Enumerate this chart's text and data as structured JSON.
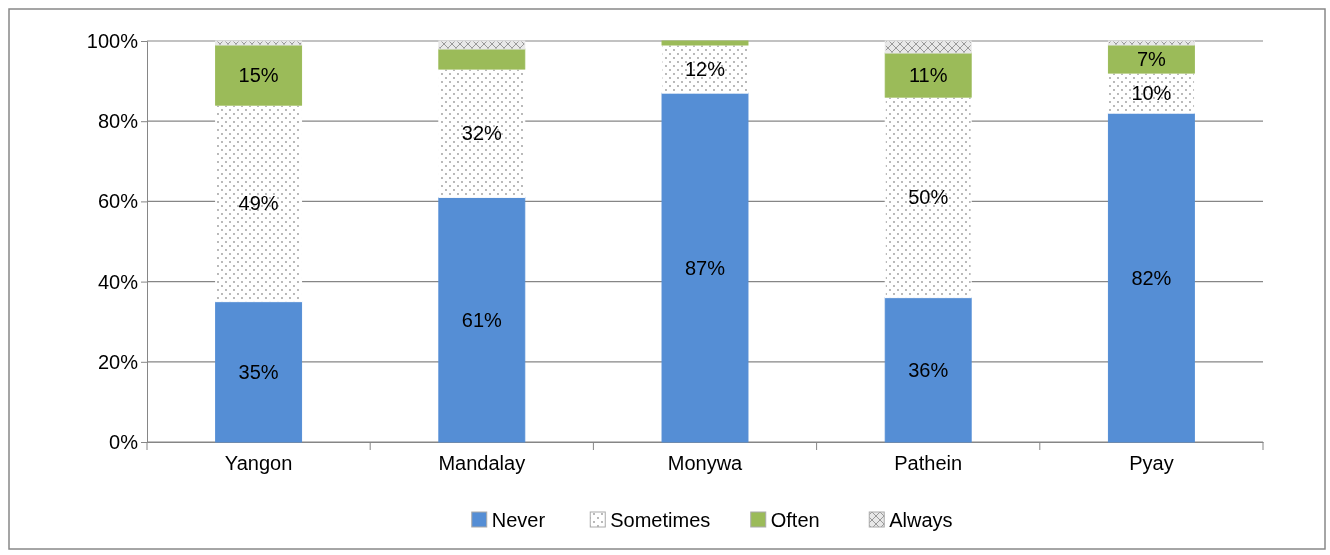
{
  "chart_data": {
    "type": "bar",
    "stacked": true,
    "categories": [
      "Yangon",
      "Mandalay",
      "Monywa",
      "Pathein",
      "Pyay"
    ],
    "series": [
      {
        "name": "Never",
        "color": "#558ed5",
        "values": [
          35,
          61,
          87,
          36,
          82
        ],
        "value_labels": [
          "35%",
          "61%",
          "87%",
          "36%",
          "82%"
        ]
      },
      {
        "name": "Sometimes",
        "color": "#ffffff",
        "values": [
          49,
          32,
          12,
          50,
          10
        ],
        "value_labels": [
          "49%",
          "32%",
          "12%",
          "50%",
          "10%"
        ]
      },
      {
        "name": "Often",
        "color": "#9bbb59",
        "values": [
          15,
          5,
          1,
          11,
          7
        ],
        "value_labels": [
          "15%",
          null,
          null,
          "11%",
          "7%"
        ]
      },
      {
        "name": "Always",
        "color": "#e8e8e8",
        "values": [
          1,
          2,
          0,
          3,
          1
        ],
        "value_labels": [
          null,
          null,
          null,
          null,
          null
        ]
      }
    ],
    "ylim": [
      0,
      100
    ],
    "yticks": [
      {
        "value": 0,
        "label": "0%"
      },
      {
        "value": 20,
        "label": "20%"
      },
      {
        "value": 40,
        "label": "40%"
      },
      {
        "value": 60,
        "label": "60%"
      },
      {
        "value": 80,
        "label": "80%"
      },
      {
        "value": 100,
        "label": "100%"
      }
    ],
    "grid": "y",
    "legend": "bottom"
  }
}
